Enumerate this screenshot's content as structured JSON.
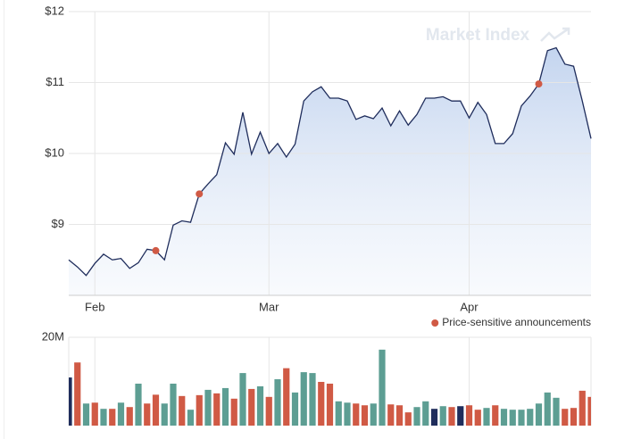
{
  "chart_data": [
    {
      "type": "line",
      "watermark": "Market Index",
      "categories": [
        null,
        null,
        null,
        "Feb",
        null,
        null,
        null,
        null,
        null,
        null,
        null,
        null,
        null,
        null,
        null,
        null,
        null,
        null,
        null,
        null,
        null,
        null,
        null,
        "Mar",
        null,
        null,
        null,
        null,
        null,
        null,
        null,
        null,
        null,
        null,
        null,
        null,
        null,
        null,
        null,
        null,
        null,
        null,
        null,
        null,
        null,
        null,
        "Apr",
        null,
        null,
        null,
        null,
        null,
        null,
        null,
        null,
        null,
        null,
        null,
        null,
        null,
        null
      ],
      "series": [
        {
          "color": "#1f2d5c",
          "values": [
            8.5,
            8.4,
            8.28,
            8.45,
            8.58,
            8.5,
            8.52,
            8.38,
            8.46,
            8.65,
            8.63,
            8.5,
            8.99,
            9.05,
            9.03,
            9.43,
            9.57,
            9.7,
            10.15,
            9.99,
            10.58,
            9.99,
            10.3,
            10.0,
            10.14,
            9.95,
            10.13,
            10.74,
            10.87,
            10.94,
            10.78,
            10.78,
            10.74,
            10.48,
            10.53,
            10.49,
            10.64,
            10.39,
            10.6,
            10.4,
            10.55,
            10.78,
            10.78,
            10.8,
            10.74,
            10.74,
            10.5,
            10.72,
            10.55,
            10.14,
            10.14,
            10.28,
            10.67,
            10.81,
            10.98,
            11.45,
            11.49,
            11.26,
            11.23,
            10.74,
            10.21
          ]
        },
        {
          "name": "Price-sensitive announcements",
          "color": "#d05a45",
          "values": [
            null,
            null,
            null,
            null,
            null,
            null,
            null,
            null,
            null,
            null,
            8.63,
            null,
            null,
            null,
            null,
            9.43,
            null,
            null,
            null,
            null,
            null,
            null,
            null,
            null,
            null,
            null,
            null,
            null,
            null,
            null,
            null,
            null,
            null,
            null,
            null,
            null,
            null,
            null,
            null,
            null,
            null,
            null,
            null,
            null,
            null,
            null,
            null,
            null,
            null,
            null,
            null,
            null,
            null,
            null,
            10.98,
            null,
            null,
            null,
            null,
            null,
            null
          ]
        }
      ],
      "ylim": [
        8,
        12
      ],
      "yticks": [
        {
          "value": 9,
          "label": "$9"
        },
        {
          "value": 10,
          "label": "$10"
        },
        {
          "value": 11,
          "label": "$11"
        },
        {
          "value": 12,
          "label": "$12"
        }
      ],
      "grid": true
    },
    {
      "type": "bar",
      "values": [
        10900000,
        14300000,
        5000000,
        5200000,
        3800000,
        3800000,
        5200000,
        4200000,
        9500000,
        5000000,
        7000000,
        5000000,
        9500000,
        6700000,
        3600000,
        6900000,
        8100000,
        7300000,
        8500000,
        6100000,
        11900000,
        8300000,
        8900000,
        6500000,
        10500000,
        13000000,
        7500000,
        12100000,
        11900000,
        9900000,
        9500000,
        5500000,
        5200000,
        5000000,
        4600000,
        5000000,
        17200000,
        4800000,
        4600000,
        3000000,
        4200000,
        5500000,
        3800000,
        4400000,
        4200000,
        4400000,
        4600000,
        3600000,
        4000000,
        4600000,
        3800000,
        3600000,
        3600000,
        3800000,
        5000000,
        7500000,
        6300000,
        3800000,
        4000000,
        7900000,
        6500000
      ],
      "colors": [
        "#1f2d5c",
        "#d05a45",
        "#5d9e93",
        "#d05a45",
        "#5d9e93",
        "#d05a45",
        "#5d9e93",
        "#d05a45",
        "#5d9e93",
        "#d05a45",
        "#d05a45",
        "#5d9e93",
        "#5d9e93",
        "#d05a45",
        "#5d9e93",
        "#d05a45",
        "#5d9e93",
        "#d05a45",
        "#5d9e93",
        "#d05a45",
        "#5d9e93",
        "#d05a45",
        "#5d9e93",
        "#d05a45",
        "#5d9e93",
        "#d05a45",
        "#5d9e93",
        "#5d9e93",
        "#5d9e93",
        "#d05a45",
        "#d05a45",
        "#5d9e93",
        "#5d9e93",
        "#d05a45",
        "#d05a45",
        "#5d9e93",
        "#5d9e93",
        "#d05a45",
        "#d05a45",
        "#d05a45",
        "#5d9e93",
        "#5d9e93",
        "#1f2d5c",
        "#5d9e93",
        "#d05a45",
        "#1f2d5c",
        "#d05a45",
        "#d05a45",
        "#5d9e93",
        "#d05a45",
        "#5d9e93",
        "#5d9e93",
        "#5d9e93",
        "#5d9e93",
        "#5d9e93",
        "#5d9e93",
        "#5d9e93",
        "#d05a45",
        "#d05a45",
        "#d05a45",
        "#d05a45"
      ],
      "ylim": [
        0,
        20000000
      ],
      "yticks": [
        {
          "value": 20000000,
          "label": "20M"
        }
      ]
    }
  ]
}
